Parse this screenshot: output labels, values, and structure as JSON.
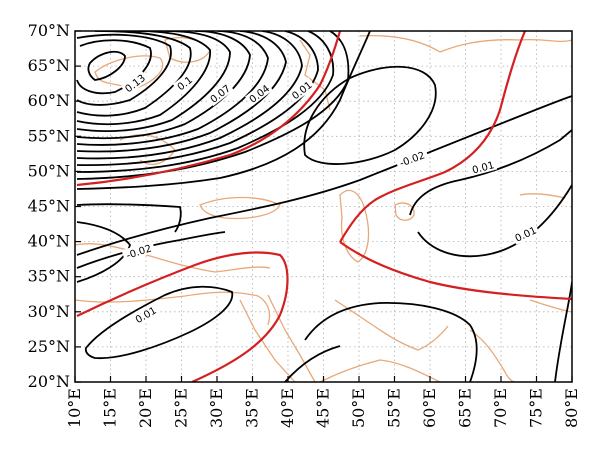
{
  "map": {
    "lon_range": [
      10,
      80
    ],
    "lat_range": [
      20,
      70
    ],
    "y_ticks": [
      "20°N",
      "25°N",
      "30°N",
      "35°N",
      "40°N",
      "45°N",
      "50°N",
      "55°N",
      "60°N",
      "65°N",
      "70°N"
    ],
    "x_ticks": [
      "10°E",
      "15°E",
      "20°E",
      "25°E",
      "30°E",
      "35°E",
      "40°E",
      "45°E",
      "50°E",
      "55°E",
      "60°E",
      "65°E",
      "70°E",
      "75°E",
      "80°E"
    ],
    "grid": "dotted",
    "colors": {
      "contour": "#000000",
      "zero_contour": "#d42020",
      "coastline": "#e8a878",
      "grid": "#b0b0b0"
    },
    "contour_labels": [
      {
        "text": "0.13",
        "lon": 18.5,
        "lat": 62.5,
        "rot": -38
      },
      {
        "text": "0.1",
        "lon": 25.5,
        "lat": 62.5,
        "rot": -38
      },
      {
        "text": "0.07",
        "lon": 30.5,
        "lat": 61,
        "rot": -38
      },
      {
        "text": "0.04",
        "lon": 36,
        "lat": 61,
        "rot": -38
      },
      {
        "text": "0.01",
        "lon": 42,
        "lat": 61.5,
        "rot": -38
      },
      {
        "text": "-0.02",
        "lon": 57.5,
        "lat": 51.7,
        "rot": -20
      },
      {
        "text": "0.01",
        "lon": 67.5,
        "lat": 50.5,
        "rot": -15
      },
      {
        "text": "0.01",
        "lon": 73.5,
        "lat": 41,
        "rot": -25
      },
      {
        "text": "-0.02",
        "lon": 19,
        "lat": 38.5,
        "rot": -18
      },
      {
        "text": "0.01",
        "lon": 20,
        "lat": 29.5,
        "rot": -30
      }
    ]
  }
}
